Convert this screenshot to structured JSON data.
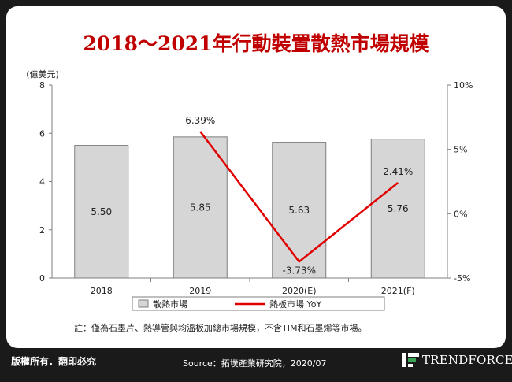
{
  "title": "2018～2021年行動裝置散熱市場規模",
  "chart_data": {
    "type": "bar+line",
    "categories": [
      "2018",
      "2019",
      "2020(E)",
      "2021(F)"
    ],
    "left_axis": {
      "unit_label": "(億美元)",
      "min": 0,
      "max": 8,
      "ticks": [
        "0",
        "2",
        "4",
        "6",
        "8"
      ]
    },
    "right_axis": {
      "min": -5,
      "max": 10,
      "ticks": [
        "-5%",
        "0%",
        "5%",
        "10%"
      ]
    },
    "series": [
      {
        "name": "散熱市場",
        "type": "bar",
        "axis": "left",
        "values": [
          5.5,
          5.85,
          5.63,
          5.76
        ],
        "labels": [
          "5.50",
          "5.85",
          "5.63",
          "5.76"
        ]
      },
      {
        "name": "熱板市場 YoY",
        "type": "line",
        "axis": "right",
        "values": [
          null,
          6.39,
          -3.73,
          2.41
        ],
        "labels": [
          "",
          "6.39%",
          "-3.73%",
          "2.41%"
        ]
      }
    ],
    "colors": {
      "bar_fill": "#d6d6d6",
      "bar_stroke": "#7f7f7f",
      "line": "#e00000",
      "axis": "#7f7f7f"
    },
    "legend_position": "bottom"
  },
  "footnote": "註：僅為石墨片、熱導管與均溫板加總市場規模，不含TIM和石墨烯等市場。",
  "footer": {
    "rights": "版權所有．翻印必究",
    "source": "Source：拓墣產業研究院，2020/07",
    "brand": "TRENDFORCE"
  }
}
